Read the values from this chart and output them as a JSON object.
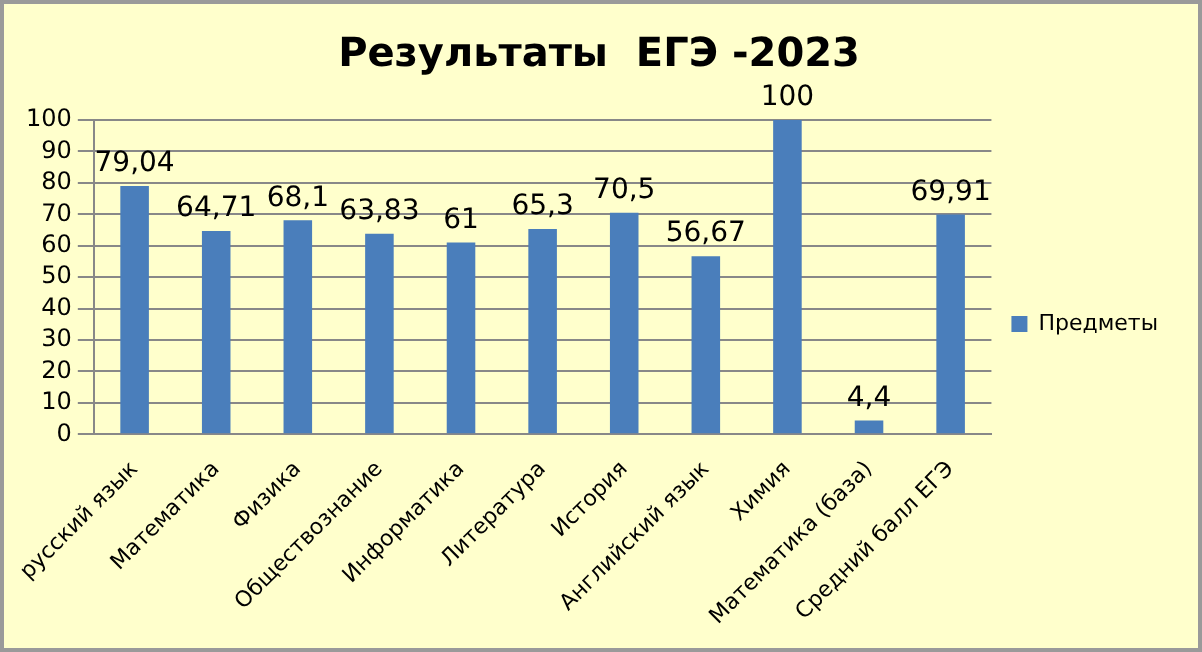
{
  "chart_data": {
    "type": "bar",
    "title": "Результаты  ЕГЭ -2023",
    "categories": [
      "русский язык",
      "Математика",
      "Физика",
      "Обществознание",
      "Информатика",
      "Литература",
      "История",
      "Английский язык",
      "Химия",
      "Математика (база)",
      "Средний балл ЕГЭ"
    ],
    "series": [
      {
        "name": "Предметы",
        "color": "#4a7ebb",
        "values": [
          79.04,
          64.71,
          68.1,
          63.83,
          61,
          65.3,
          70.5,
          56.67,
          100,
          4.4,
          69.91
        ],
        "value_labels": [
          "79,04",
          "64,71",
          "68,1",
          "63,83",
          "61",
          "65,3",
          "70,5",
          "56,67",
          "100",
          "4,4",
          "69,91"
        ]
      }
    ],
    "ylim": [
      0,
      100
    ],
    "yticks": [
      0,
      10,
      20,
      30,
      40,
      50,
      60,
      70,
      80,
      90,
      100
    ],
    "grid": "y",
    "legend": "right"
  }
}
